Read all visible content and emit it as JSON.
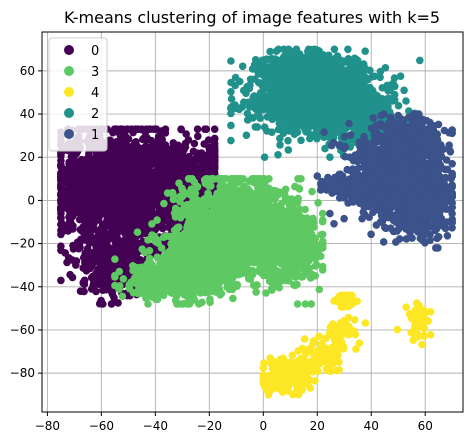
{
  "chart_data": {
    "type": "scatter",
    "title": "K-means clustering of image features with k=5",
    "xlabel": "",
    "ylabel": "",
    "xlim": [
      -82,
      74
    ],
    "ylim": [
      -98,
      78
    ],
    "x_ticks": [
      -80,
      -60,
      -40,
      -20,
      0,
      20,
      40,
      60
    ],
    "y_ticks": [
      -80,
      -60,
      -40,
      -20,
      0,
      20,
      40,
      60
    ],
    "x_tick_labels": [
      "−80",
      "−60",
      "−40",
      "−20",
      "0",
      "20",
      "40",
      "60"
    ],
    "y_tick_labels": [
      "−80",
      "−60",
      "−40",
      "−20",
      "0",
      "20",
      "40",
      "60"
    ],
    "grid": true,
    "legend_position": "upper-left",
    "legend": [
      {
        "label": "0",
        "color": "#440154"
      },
      {
        "label": "3",
        "color": "#5ec962"
      },
      {
        "label": "4",
        "color": "#fde725"
      },
      {
        "label": "2",
        "color": "#21918c"
      },
      {
        "label": "1",
        "color": "#3b528b"
      }
    ],
    "clusters": [
      {
        "name": "0",
        "color": "#440154",
        "approx_extent": {
          "x": [
            -75,
            -18
          ],
          "y": [
            -48,
            33
          ]
        },
        "blobs": [
          {
            "cx": -50,
            "cy": 5,
            "sx": 13,
            "sy": 14,
            "n": 1500
          },
          {
            "cx": -30,
            "cy": 8,
            "sx": 9,
            "sy": 10,
            "n": 500
          },
          {
            "cx": -55,
            "cy": -30,
            "sx": 7,
            "sy": 7,
            "n": 380
          },
          {
            "cx": -60,
            "cy": 10,
            "sx": 7,
            "sy": 9,
            "n": 400
          }
        ]
      },
      {
        "name": "3",
        "color": "#5ec962",
        "approx_extent": {
          "x": [
            -55,
            22
          ],
          "y": [
            -48,
            10
          ]
        },
        "blobs": [
          {
            "cx": -10,
            "cy": -12,
            "sx": 10,
            "sy": 11,
            "n": 1300
          },
          {
            "cx": -25,
            "cy": -30,
            "sx": 8,
            "sy": 7,
            "n": 700
          },
          {
            "cx": 8,
            "cy": -20,
            "sx": 7,
            "sy": 9,
            "n": 600
          },
          {
            "cx": -40,
            "cy": -38,
            "sx": 6,
            "sy": 4,
            "n": 200
          }
        ]
      },
      {
        "name": "4",
        "color": "#fde725",
        "approx_extent": {
          "x": [
            0,
            62
          ],
          "y": [
            -90,
            -44
          ]
        },
        "blobs": [
          {
            "cx": 31,
            "cy": -46,
            "sx": 1.6,
            "sy": 1.6,
            "n": 70
          },
          {
            "cx": 58,
            "cy": -56,
            "sx": 2.5,
            "sy": 4,
            "n": 60
          },
          {
            "cx": 10,
            "cy": -80,
            "sx": 5,
            "sy": 4,
            "n": 150
          },
          {
            "cx": 22,
            "cy": -72,
            "sx": 4,
            "sy": 4,
            "n": 90
          },
          {
            "cx": 28,
            "cy": -62,
            "sx": 3,
            "sy": 3,
            "n": 50
          },
          {
            "cx": 3,
            "cy": -85,
            "sx": 2,
            "sy": 2,
            "n": 40
          }
        ]
      },
      {
        "name": "2",
        "color": "#21918c",
        "approx_extent": {
          "x": [
            -12,
            58
          ],
          "y": [
            20,
            70
          ]
        },
        "blobs": [
          {
            "cx": 18,
            "cy": 48,
            "sx": 11,
            "sy": 8,
            "n": 1300
          },
          {
            "cx": 35,
            "cy": 38,
            "sx": 8,
            "sy": 6,
            "n": 450
          },
          {
            "cx": 15,
            "cy": 60,
            "sx": 7,
            "sy": 4,
            "n": 400
          }
        ]
      },
      {
        "name": "1",
        "color": "#3b528b",
        "approx_extent": {
          "x": [
            20,
            70
          ],
          "y": [
            -22,
            40
          ]
        },
        "blobs": [
          {
            "cx": 48,
            "cy": 12,
            "sx": 9,
            "sy": 10,
            "n": 1000
          },
          {
            "cx": 58,
            "cy": 0,
            "sx": 6,
            "sy": 8,
            "n": 500
          },
          {
            "cx": 56,
            "cy": 28,
            "sx": 5,
            "sy": 5,
            "n": 250
          },
          {
            "cx": 25,
            "cy": 8,
            "sx": 3,
            "sy": 2,
            "n": 50
          }
        ]
      }
    ]
  }
}
